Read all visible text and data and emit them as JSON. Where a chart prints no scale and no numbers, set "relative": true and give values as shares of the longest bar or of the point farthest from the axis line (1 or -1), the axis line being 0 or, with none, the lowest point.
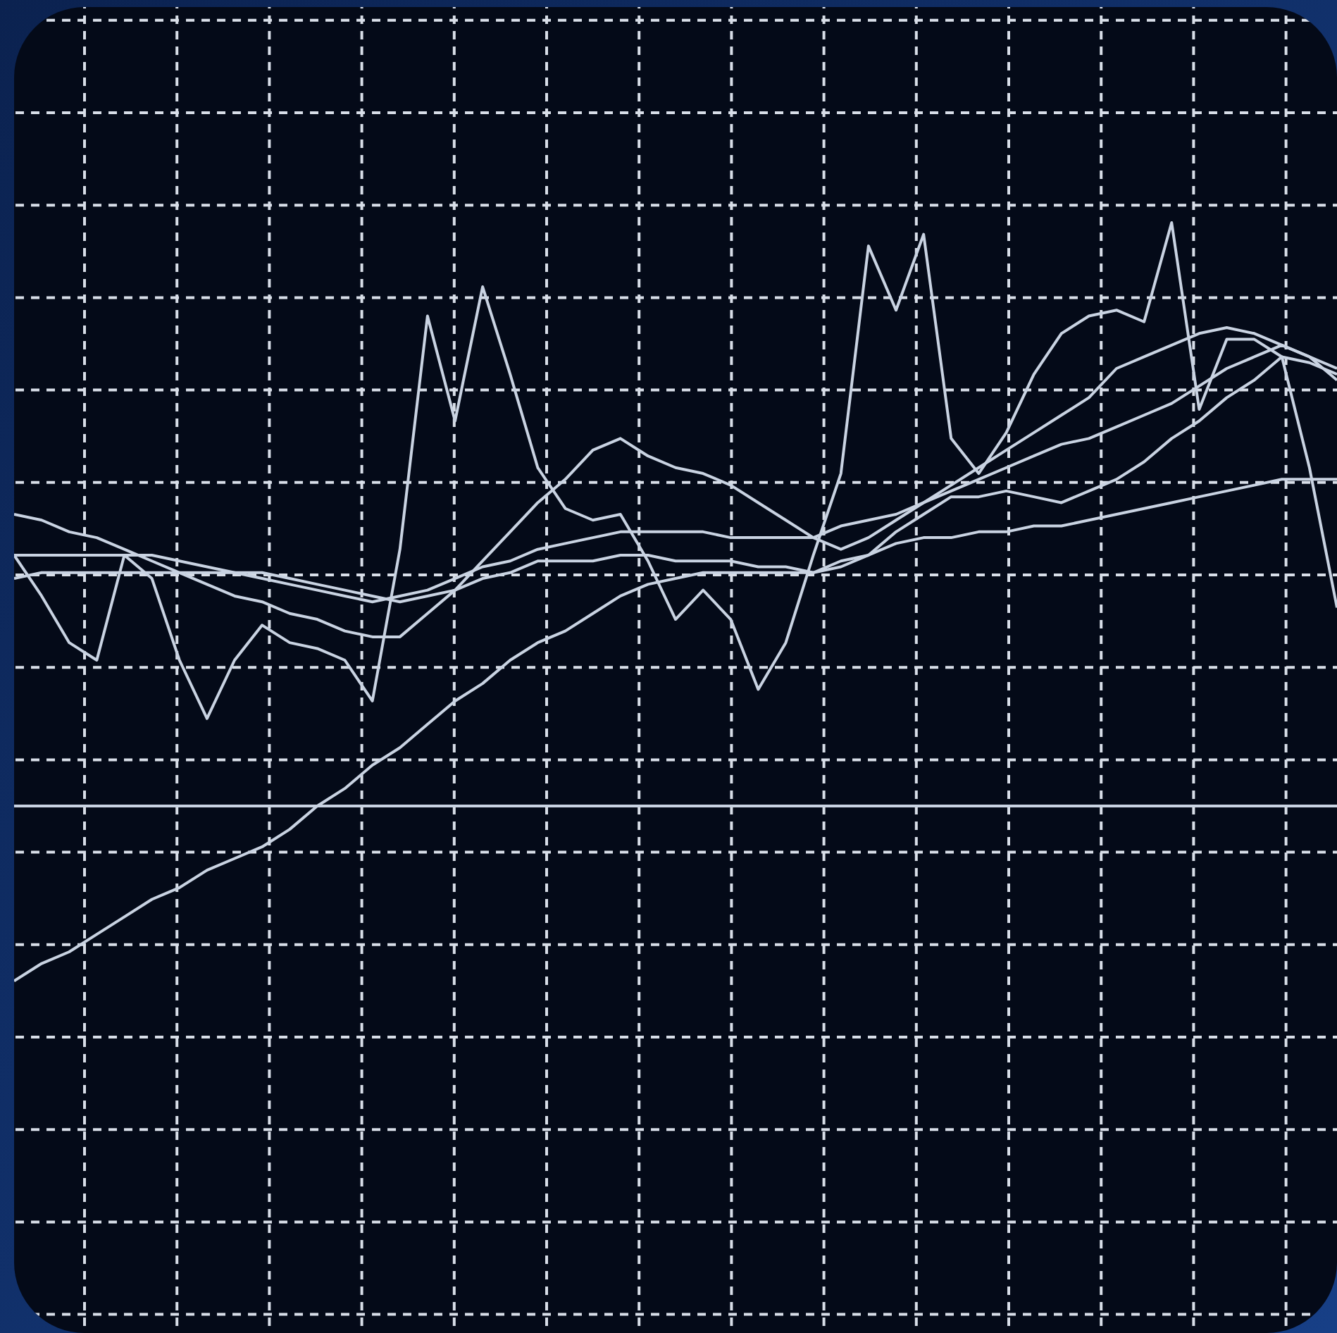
{
  "chart_data": {
    "type": "line",
    "relative": true,
    "grid": true,
    "legend": false,
    "marker": "none",
    "line_style": "solid",
    "categories": [
      null,
      null,
      null,
      null,
      null,
      null,
      null,
      null,
      null,
      null,
      null,
      null,
      null,
      null,
      null,
      null,
      null,
      null,
      null,
      null,
      null,
      null,
      null,
      null,
      null,
      null,
      null,
      null,
      null,
      null,
      null,
      null,
      null,
      null,
      null,
      null,
      null,
      null,
      null,
      null,
      null,
      null,
      null,
      null,
      null,
      null,
      null,
      null,
      null
    ],
    "series": [
      {
        "color": "#c9d3e2",
        "values": [
          0.43,
          0.36,
          0.28,
          0.25,
          0.43,
          0.39,
          0.25,
          0.15,
          0.25,
          0.31,
          0.28,
          0.27,
          0.25,
          0.18,
          0.44,
          0.84,
          0.66,
          0.89,
          0.74,
          0.58,
          0.51,
          0.49,
          0.5,
          0.42,
          0.32,
          0.37,
          0.32,
          0.2,
          0.28,
          0.43,
          0.57,
          0.96,
          0.85,
          0.98,
          0.63,
          0.57,
          0.64,
          0.74,
          0.81,
          0.84,
          0.85,
          0.83,
          1.0,
          0.68,
          0.8,
          0.8,
          0.77,
          0.58,
          0.34
        ]
      },
      {
        "color": "#c9d3e2",
        "values": [
          0.5,
          0.49,
          0.47,
          0.46,
          0.44,
          0.42,
          0.4,
          0.38,
          0.36,
          0.35,
          0.33,
          0.32,
          0.3,
          0.29,
          0.29,
          0.33,
          0.37,
          0.42,
          0.47,
          0.52,
          0.56,
          0.61,
          0.63,
          0.6,
          0.58,
          0.57,
          0.55,
          0.52,
          0.49,
          0.46,
          0.44,
          0.46,
          0.49,
          0.52,
          0.55,
          0.58,
          0.61,
          0.64,
          0.67,
          0.7,
          0.75,
          0.77,
          0.79,
          0.81,
          0.82,
          0.81,
          0.79,
          0.77,
          0.75
        ]
      },
      {
        "color": "#c9d3e2",
        "values": [
          0.43,
          0.43,
          0.43,
          0.43,
          0.43,
          0.43,
          0.42,
          0.41,
          0.4,
          0.39,
          0.38,
          0.37,
          0.36,
          0.35,
          0.36,
          0.37,
          0.39,
          0.41,
          0.42,
          0.44,
          0.45,
          0.46,
          0.47,
          0.47,
          0.47,
          0.47,
          0.46,
          0.46,
          0.46,
          0.46,
          0.48,
          0.49,
          0.5,
          0.52,
          0.54,
          0.56,
          0.58,
          0.6,
          0.62,
          0.63,
          0.65,
          0.67,
          0.69,
          0.72,
          0.75,
          0.77,
          0.79,
          0.77,
          0.73
        ]
      },
      {
        "color": "#c9d3e2",
        "values": [
          0.39,
          0.4,
          0.4,
          0.4,
          0.4,
          0.4,
          0.4,
          0.4,
          0.4,
          0.4,
          0.39,
          0.38,
          0.37,
          0.36,
          0.35,
          0.36,
          0.37,
          0.39,
          0.4,
          0.42,
          0.42,
          0.42,
          0.43,
          0.43,
          0.42,
          0.42,
          0.42,
          0.41,
          0.41,
          0.4,
          0.41,
          0.43,
          0.47,
          0.5,
          0.53,
          0.53,
          0.54,
          0.53,
          0.52,
          0.54,
          0.56,
          0.59,
          0.63,
          0.66,
          0.7,
          0.73,
          0.77,
          0.76,
          0.74
        ]
      },
      {
        "color": "#c9d3e2",
        "values": [
          -0.3,
          -0.27,
          -0.25,
          -0.22,
          -0.19,
          -0.16,
          -0.14,
          -0.11,
          -0.09,
          -0.07,
          -0.04,
          0.0,
          0.03,
          0.07,
          0.1,
          0.14,
          0.18,
          0.21,
          0.25,
          0.28,
          0.3,
          0.33,
          0.36,
          0.38,
          0.39,
          0.4,
          0.4,
          0.4,
          0.4,
          0.4,
          0.42,
          0.43,
          0.45,
          0.46,
          0.46,
          0.47,
          0.47,
          0.48,
          0.48,
          0.49,
          0.5,
          0.51,
          0.52,
          0.53,
          0.54,
          0.55,
          0.56,
          0.56,
          0.56
        ]
      }
    ],
    "ref_lines": [
      {
        "axis": "y",
        "value": 0,
        "color": "#c9d3e2",
        "line_style": "solid"
      }
    ]
  }
}
